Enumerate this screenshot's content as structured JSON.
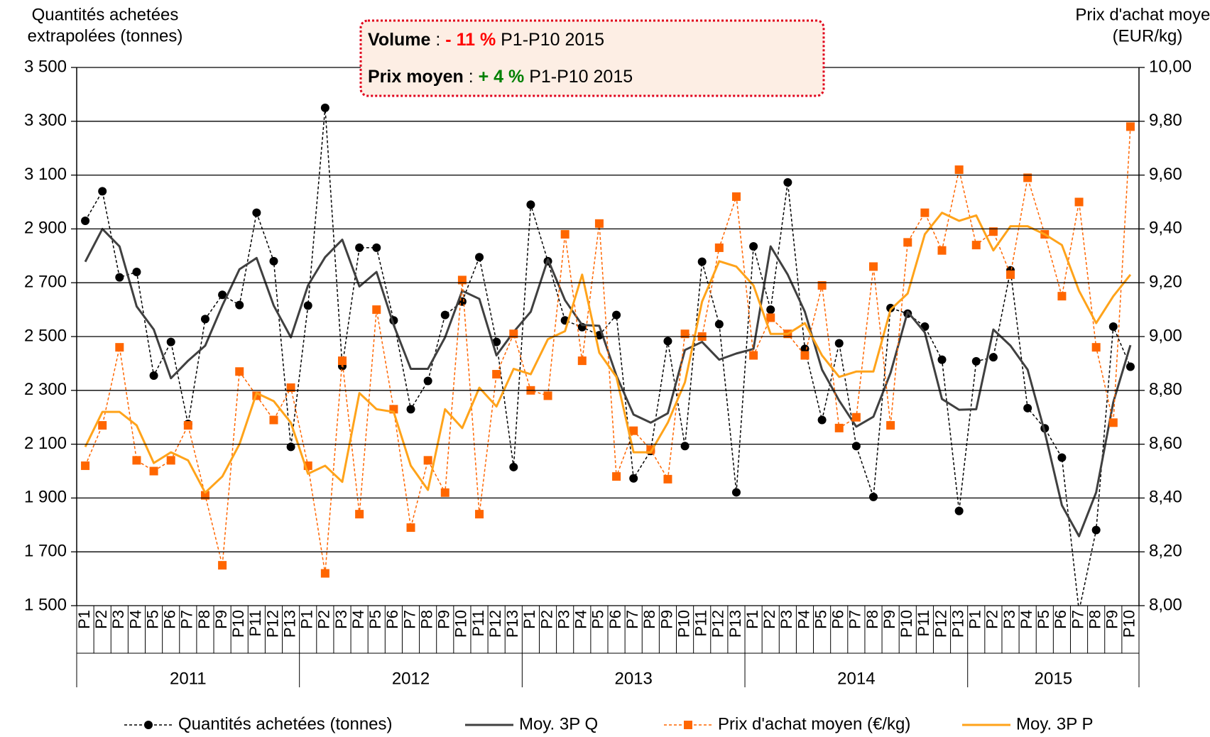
{
  "chart_data": {
    "type": "line",
    "y_axis_title": [
      "Quantités achetées",
      "extrapolées (tonnes)"
    ],
    "y2_axis_title": [
      "Prix d'achat moyen",
      "(EUR/kg)"
    ],
    "annotations": [
      {
        "label": "Volume",
        "separator": " : ",
        "change": "- 11 %",
        "change_color": "#ff0000",
        "period": " P1-P10 2015"
      },
      {
        "label": "Prix moyen",
        "separator": " : ",
        "change": "+ 4 %",
        "change_color": "#008000",
        "period": " P1-P10 2015"
      }
    ],
    "categories": [
      "P1",
      "P2",
      "P3",
      "P4",
      "P5",
      "P6",
      "P7",
      "P8",
      "P9",
      "P10",
      "P11",
      "P12",
      "P13",
      "P1",
      "P2",
      "P3",
      "P4",
      "P5",
      "P6",
      "P7",
      "P8",
      "P9",
      "P10",
      "P11",
      "P12",
      "P13",
      "P1",
      "P2",
      "P3",
      "P4",
      "P5",
      "P6",
      "P7",
      "P8",
      "P9",
      "P10",
      "P11",
      "P12",
      "P13",
      "P1",
      "P2",
      "P3",
      "P4",
      "P5",
      "P6",
      "P7",
      "P8",
      "P9",
      "P10",
      "P11",
      "P12",
      "P13",
      "P1",
      "P2",
      "P3",
      "P4",
      "P5",
      "P6",
      "P7",
      "P8",
      "P9",
      "P10"
    ],
    "category_groups": [
      {
        "label": "2011",
        "size": 13
      },
      {
        "label": "2012",
        "size": 13
      },
      {
        "label": "2013",
        "size": 13
      },
      {
        "label": "2014",
        "size": 13
      },
      {
        "label": "2015",
        "size": 10
      }
    ],
    "ylim": [
      1500,
      3500
    ],
    "yticks": [
      {
        "value": 1500,
        "label": "1 500"
      },
      {
        "value": 1700,
        "label": "1 700"
      },
      {
        "value": 1900,
        "label": "1 900"
      },
      {
        "value": 2100,
        "label": "2 100"
      },
      {
        "value": 2300,
        "label": "2 300"
      },
      {
        "value": 2500,
        "label": "2 500"
      },
      {
        "value": 2700,
        "label": "2 700"
      },
      {
        "value": 2900,
        "label": "2 900"
      },
      {
        "value": 3100,
        "label": "3 100"
      },
      {
        "value": 3300,
        "label": "3 300"
      },
      {
        "value": 3500,
        "label": "3 500"
      }
    ],
    "y2lim": [
      8,
      10
    ],
    "y2ticks": [
      {
        "value": 8,
        "label": "8,00"
      },
      {
        "value": 8.2,
        "label": "8,20"
      },
      {
        "value": 8.4,
        "label": "8,40"
      },
      {
        "value": 8.6,
        "label": "8,60"
      },
      {
        "value": 8.8,
        "label": "8,80"
      },
      {
        "value": 9,
        "label": "9,00"
      },
      {
        "value": 9.2,
        "label": "9,20"
      },
      {
        "value": 9.4,
        "label": "9,40"
      },
      {
        "value": 9.6,
        "label": "9,60"
      },
      {
        "value": 9.8,
        "label": "9,80"
      },
      {
        "value": 10,
        "label": "10,00"
      }
    ],
    "grid": true,
    "legend": "bottom",
    "series": [
      {
        "name": "Quantités achetées (tonnes)",
        "color": "#000000",
        "dashed": true,
        "marker": "circle",
        "width": 1.5,
        "values": [
          2930,
          3040,
          2720,
          2740,
          2355,
          2480,
          2175,
          2565,
          2655,
          2617,
          2960,
          2780,
          2090,
          2615,
          3350,
          2390,
          2830,
          2830,
          2560,
          2230,
          2335,
          2580,
          2630,
          2795,
          2480,
          2015,
          2990,
          2780,
          2560,
          2535,
          2505,
          2580,
          1973,
          2075,
          2483,
          2093,
          2778,
          2546,
          1921,
          2835,
          2600,
          3073,
          2454,
          2190,
          2475,
          2093,
          1904,
          2606,
          2585,
          2537,
          2414,
          1852,
          2408,
          2423,
          2746,
          2234,
          2159,
          2050,
          1480,
          1781,
          2537,
          2388
        ]
      },
      {
        "name": "Moy. 3P Q",
        "color": "#404040",
        "dashed": false,
        "marker": null,
        "width": 3,
        "values": [
          2778,
          2900,
          2835,
          2612,
          2526,
          2345,
          2410,
          2466,
          2615,
          2750,
          2792,
          2615,
          2497,
          2690,
          2795,
          2860,
          2686,
          2740,
          2543,
          2380,
          2380,
          2497,
          2670,
          2640,
          2430,
          2517,
          2592,
          2787,
          2635,
          2543,
          2540,
          2355,
          2210,
          2180,
          2215,
          2450,
          2480,
          2414,
          2437,
          2454,
          2835,
          2730,
          2592,
          2377,
          2262,
          2165,
          2202,
          2365,
          2592,
          2515,
          2268,
          2228,
          2230,
          2526,
          2466,
          2377,
          2145,
          1873,
          1758,
          1921,
          2256,
          2468
        ]
      },
      {
        "name": "Prix d'achat moyen (€/kg)",
        "color": "#ff6600",
        "dashed": true,
        "marker": "square",
        "width": 1.5,
        "axis": "y2",
        "values": [
          8.52,
          8.67,
          8.96,
          8.54,
          8.5,
          8.54,
          8.67,
          8.41,
          8.15,
          8.87,
          8.78,
          8.69,
          8.81,
          8.52,
          8.12,
          8.91,
          8.34,
          9.1,
          8.73,
          8.29,
          8.54,
          8.42,
          9.21,
          8.34,
          8.86,
          9.01,
          8.8,
          8.78,
          9.38,
          8.91,
          9.42,
          8.48,
          8.65,
          8.58,
          8.47,
          9.01,
          9.0,
          9.33,
          9.52,
          8.93,
          9.07,
          9.01,
          8.93,
          9.19,
          8.66,
          8.7,
          9.26,
          8.67,
          9.35,
          9.46,
          9.32,
          9.62,
          9.34,
          9.39,
          9.23,
          9.59,
          9.38,
          9.15,
          9.5,
          8.96,
          8.68,
          9.78
        ]
      },
      {
        "name": "Moy. 3P P",
        "color": "#ffa31a",
        "dashed": false,
        "marker": null,
        "width": 3,
        "axis": "y2",
        "values": [
          8.59,
          8.72,
          8.72,
          8.67,
          8.53,
          8.57,
          8.54,
          8.42,
          8.48,
          8.6,
          8.79,
          8.76,
          8.68,
          8.49,
          8.52,
          8.46,
          8.79,
          8.73,
          8.72,
          8.52,
          8.43,
          8.73,
          8.66,
          8.81,
          8.74,
          8.88,
          8.86,
          8.99,
          9.02,
          9.23,
          8.94,
          8.85,
          8.57,
          8.57,
          8.68,
          8.83,
          9.13,
          9.28,
          9.26,
          9.19,
          9.01,
          9.01,
          9.05,
          8.93,
          8.85,
          8.87,
          8.87,
          9.1,
          9.16,
          9.38,
          9.46,
          9.43,
          9.45,
          9.32,
          9.41,
          9.41,
          9.38,
          9.34,
          9.17,
          9.05,
          9.15,
          9.23
        ]
      }
    ]
  }
}
